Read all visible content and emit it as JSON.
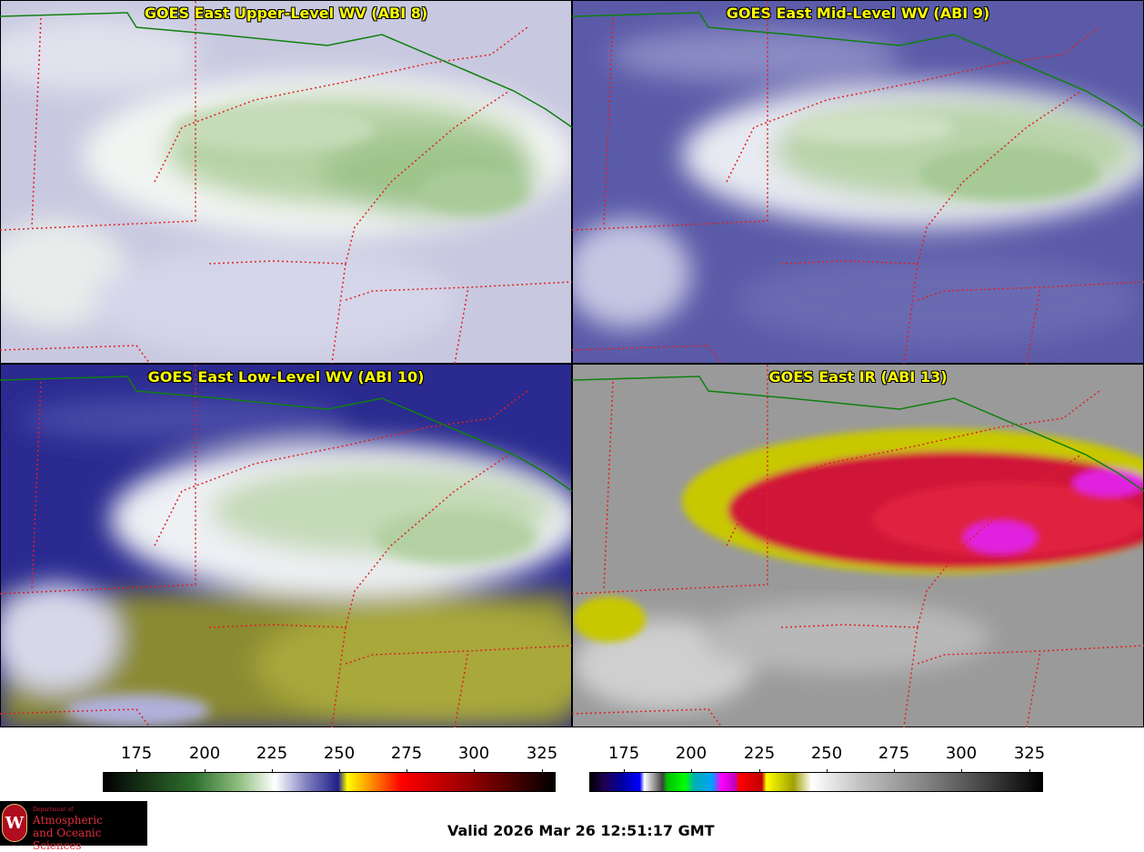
{
  "panels": [
    {
      "title": "GOES East Upper-Level WV (ABI 8)"
    },
    {
      "title": "GOES East Mid-Level WV (ABI 9)"
    },
    {
      "title": "GOES East Low-Level WV (ABI 10)"
    },
    {
      "title": "GOES East IR (ABI 13)"
    }
  ],
  "colorbars": {
    "wv": {
      "ticks": [
        "175",
        "200",
        "225",
        "250",
        "275",
        "300",
        "325"
      ]
    },
    "ir": {
      "ticks": [
        "175",
        "200",
        "225",
        "250",
        "275",
        "300",
        "325"
      ]
    }
  },
  "logo": {
    "seal_letter": "W",
    "dept_small": "Department of",
    "line1": "Atmospheric",
    "line2": "and Oceanic Sciences"
  },
  "valid_time": "Valid 2026 Mar 26 12:51:17 GMT",
  "colors": {
    "state_border": "#e02020",
    "country_border": "#108010",
    "title_text": "#ffff00"
  }
}
